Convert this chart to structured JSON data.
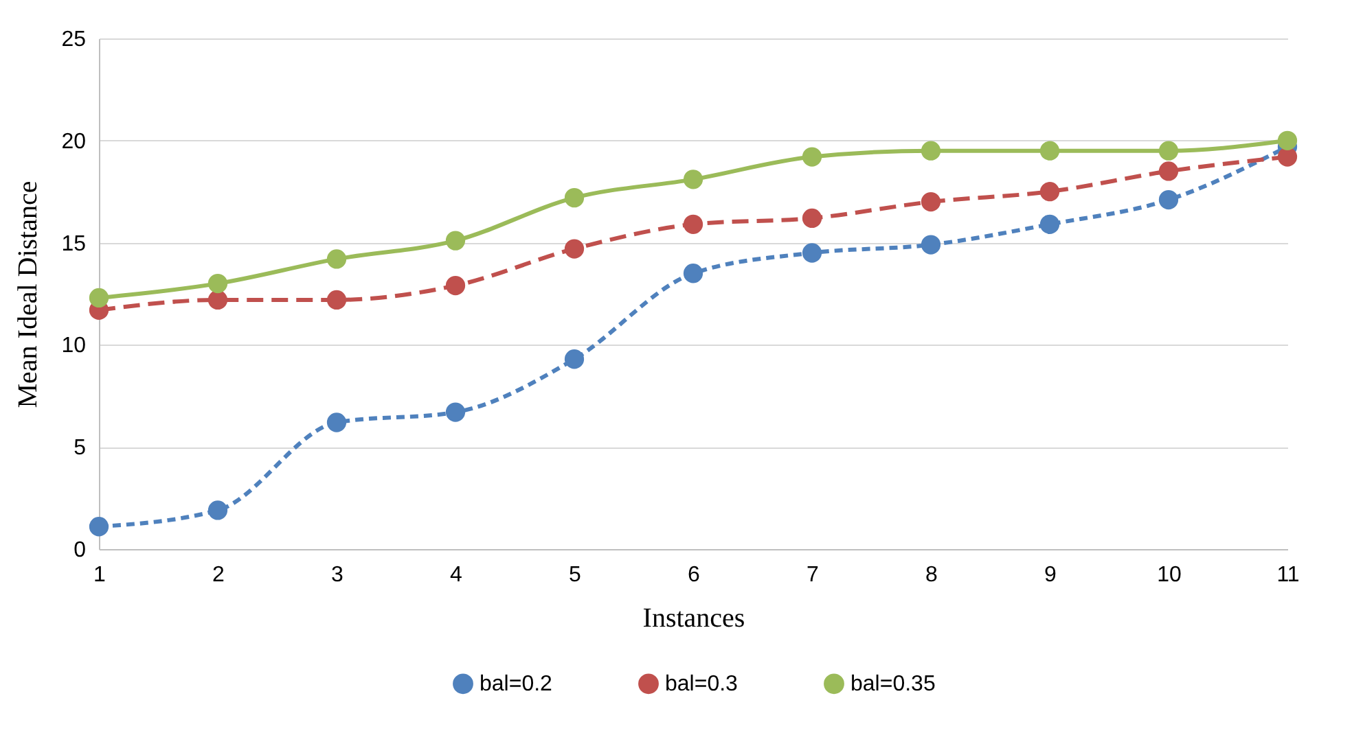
{
  "chart_data": {
    "type": "line",
    "xlabel": "Instances",
    "ylabel": "Mean Ideal Distance",
    "categories": [
      "1",
      "2",
      "3",
      "4",
      "5",
      "6",
      "7",
      "8",
      "9",
      "10",
      "11"
    ],
    "ylim": [
      0,
      25
    ],
    "yticks": [
      0,
      5,
      10,
      15,
      20,
      25
    ],
    "grid": "y",
    "legend": "bottom",
    "marker": "circle",
    "series": [
      {
        "name": "bal=0.2",
        "color": "#4f81bd",
        "line_style": "dashed",
        "values": [
          1.1,
          1.9,
          6.2,
          6.7,
          9.3,
          13.5,
          14.5,
          14.9,
          15.9,
          17.1,
          19.7
        ]
      },
      {
        "name": "bal=0.3",
        "color": "#c0504d",
        "line_style": "dashed",
        "values": [
          11.7,
          12.2,
          12.2,
          12.9,
          14.7,
          15.9,
          16.2,
          17.0,
          17.5,
          18.5,
          19.2
        ]
      },
      {
        "name": "bal=0.35",
        "color": "#9bbb59",
        "line_style": "solid",
        "values": [
          12.3,
          13.0,
          14.2,
          15.1,
          17.2,
          18.1,
          19.2,
          19.5,
          19.5,
          19.5,
          20.0
        ]
      }
    ]
  }
}
